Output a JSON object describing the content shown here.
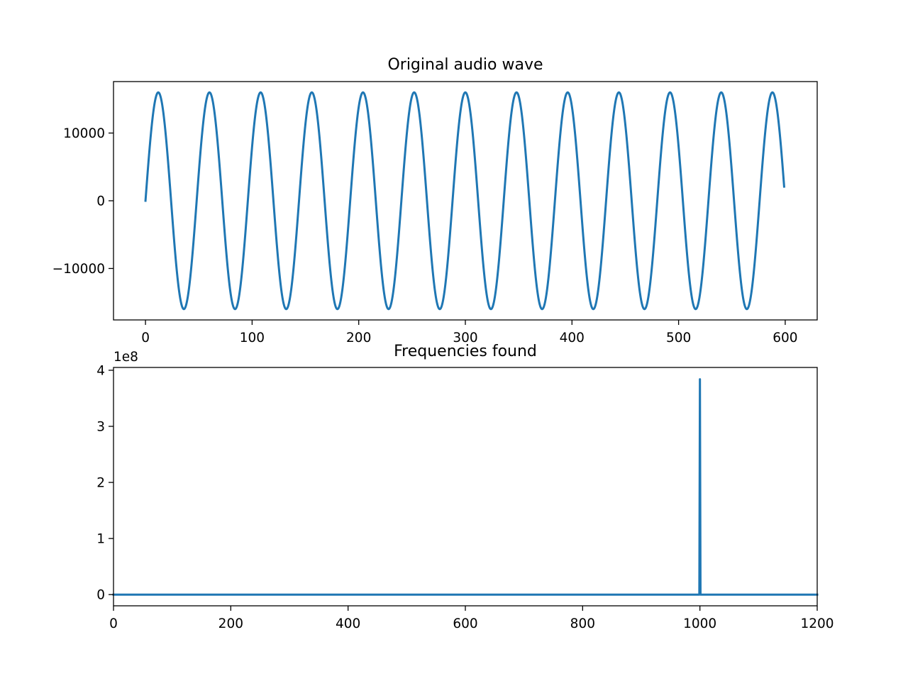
{
  "chart_data": [
    {
      "type": "line",
      "title": "Original audio wave",
      "xlabel": "",
      "ylabel": "",
      "xlim": [
        -30,
        630
      ],
      "ylim": [
        -17600,
        17600
      ],
      "xticks": [
        0,
        100,
        200,
        300,
        400,
        500,
        600
      ],
      "xtick_labels": [
        "0",
        "100",
        "200",
        "300",
        "400",
        "500",
        "600"
      ],
      "yticks": [
        -10000,
        0,
        10000
      ],
      "ytick_labels": [
        "−10000",
        "0",
        "10000"
      ],
      "grid": false,
      "color": "#1f77b4",
      "series": [
        {
          "function": "sine",
          "x_start": 0,
          "x_end": 599,
          "amplitude": 16000,
          "period_samples": 48,
          "phase": 0,
          "sample_step": 1
        }
      ]
    },
    {
      "type": "line",
      "title": "Frequencies found",
      "xlabel": "",
      "ylabel": "",
      "xlim": [
        0,
        1200
      ],
      "ylim": [
        -20000000.0,
        405000000.0
      ],
      "y_offset_label": "1e8",
      "xticks": [
        0,
        200,
        400,
        600,
        800,
        1000,
        1200
      ],
      "xtick_labels": [
        "0",
        "200",
        "400",
        "600",
        "800",
        "1000",
        "1200"
      ],
      "yticks": [
        0,
        100000000.0,
        200000000.0,
        300000000.0,
        400000000.0
      ],
      "ytick_labels": [
        "0",
        "1",
        "2",
        "3",
        "4"
      ],
      "grid": false,
      "color": "#1f77b4",
      "series": [
        {
          "x": [
            0,
            998,
            999,
            1000,
            1001,
            1002,
            1200
          ],
          "y": [
            0,
            0,
            0,
            384000000.0,
            0,
            0,
            0
          ]
        }
      ]
    }
  ]
}
